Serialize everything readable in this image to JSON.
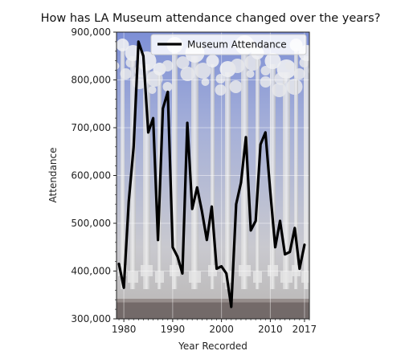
{
  "chart_data": {
    "type": "line",
    "title": "How has LA Museum attendance changed over the years?",
    "xlabel": "Year Recorded",
    "ylabel": "Attendance",
    "xlim": [
      1978.5,
      2018
    ],
    "ylim": [
      300000,
      900000
    ],
    "x_ticks": [
      1980,
      1990,
      2000,
      2010,
      2017
    ],
    "x_tick_labels": [
      "1980",
      "1990",
      "2000",
      "2010",
      "2017"
    ],
    "y_ticks": [
      300000,
      400000,
      500000,
      600000,
      700000,
      800000,
      900000
    ],
    "y_tick_labels": [
      "300,000",
      "400,000",
      "500,000",
      "600,000",
      "700,000",
      "800,000",
      "900,000"
    ],
    "grid": true,
    "legend_position": "top-right",
    "background": "photo of lamp post sculpture (Urban Light)",
    "series": [
      {
        "name": "Museum Attendance",
        "color": "#000000",
        "x": [
          1979,
          1980,
          1981,
          1982,
          1983,
          1984,
          1985,
          1986,
          1987,
          1988,
          1989,
          1990,
          1991,
          1992,
          1993,
          1994,
          1995,
          1996,
          1997,
          1998,
          1999,
          2000,
          2001,
          2002,
          2003,
          2004,
          2005,
          2006,
          2007,
          2008,
          2009,
          2010,
          2011,
          2012,
          2013,
          2014,
          2015,
          2016,
          2017
        ],
        "values": [
          415000,
          365000,
          545000,
          660000,
          880000,
          850000,
          690000,
          720000,
          465000,
          740000,
          775000,
          450000,
          430000,
          395000,
          710000,
          530000,
          575000,
          525000,
          465000,
          535000,
          405000,
          410000,
          395000,
          325000,
          540000,
          585000,
          680000,
          485000,
          505000,
          665000,
          690000,
          565000,
          450000,
          505000,
          435000,
          440000,
          490000,
          405000,
          455000
        ]
      }
    ]
  }
}
